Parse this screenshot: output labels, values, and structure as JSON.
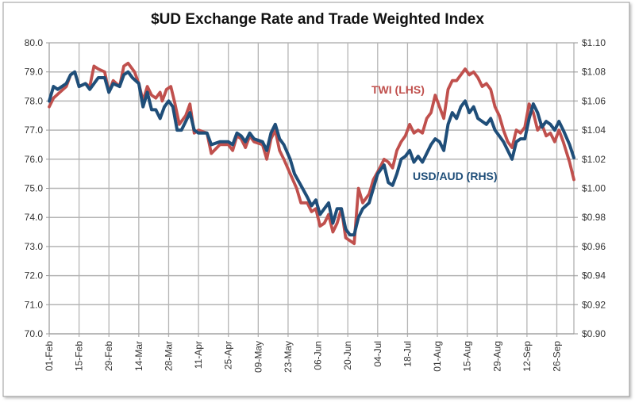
{
  "chart_data": {
    "type": "line",
    "title": "$UD Exchange Rate and Trade Weighted Index",
    "x_unit": "days since 01-Feb",
    "x_tick_labels": [
      "01-Feb",
      "15-Feb",
      "29-Feb",
      "14-Mar",
      "28-Mar",
      "11-Apr",
      "25-Apr",
      "09-May",
      "23-May",
      "06-Jun",
      "20-Jun",
      "04-Jul",
      "18-Jul",
      "01-Aug",
      "15-Aug",
      "29-Aug",
      "12-Sep",
      "26-Sep"
    ],
    "x_tick_days": [
      0,
      14,
      28,
      42,
      56,
      70,
      84,
      98,
      112,
      126,
      140,
      154,
      168,
      182,
      196,
      210,
      224,
      238
    ],
    "xlim": [
      0,
      246
    ],
    "y_left": {
      "ylim": [
        70,
        80
      ],
      "ticks": [
        "70.0",
        "71.0",
        "72.0",
        "73.0",
        "74.0",
        "75.0",
        "76.0",
        "77.0",
        "78.0",
        "79.0",
        "80.0"
      ]
    },
    "y_right": {
      "ylim": [
        0.9,
        1.1
      ],
      "ticks": [
        "$0.90",
        "$0.92",
        "$0.94",
        "$0.96",
        "$0.98",
        "$1.00",
        "$1.02",
        "$1.04",
        "$1.06",
        "$1.08",
        "$1.10"
      ]
    },
    "grid": true,
    "series": [
      {
        "name": "TWI (LHS)",
        "axis": "left",
        "color": "#c0504d",
        "x": [
          0,
          2,
          5,
          8,
          10,
          12,
          14,
          17,
          19,
          21,
          23,
          26,
          28,
          30,
          33,
          35,
          37,
          40,
          42,
          44,
          46,
          48,
          50,
          52,
          53,
          55,
          57,
          59,
          61,
          64,
          66,
          68,
          70,
          74,
          76,
          80,
          84,
          86,
          88,
          90,
          92,
          94,
          96,
          100,
          102,
          104,
          106,
          108,
          110,
          113,
          116,
          118,
          121,
          123,
          125,
          127,
          129,
          131,
          133,
          135,
          137,
          139,
          141,
          143,
          145,
          147,
          150,
          152,
          155,
          157,
          159,
          161,
          163,
          165,
          167,
          169,
          171,
          173,
          175,
          177,
          179,
          181,
          183,
          185,
          187,
          189,
          191,
          193,
          195,
          197,
          199,
          201,
          203,
          205,
          207,
          209,
          211,
          213,
          215,
          217,
          219,
          221,
          223,
          225,
          227,
          229,
          231,
          233,
          235,
          237,
          239,
          241,
          244,
          246
        ],
        "values": [
          77.8,
          78.1,
          78.3,
          78.5,
          78.9,
          79.0,
          78.5,
          78.6,
          78.5,
          79.2,
          79.1,
          79.0,
          78.3,
          78.7,
          78.5,
          79.2,
          79.3,
          79.0,
          78.6,
          78.0,
          78.5,
          78.2,
          78.1,
          78.3,
          78.0,
          78.4,
          78.5,
          77.9,
          77.2,
          77.5,
          77.9,
          76.9,
          77.0,
          76.9,
          76.2,
          76.5,
          76.5,
          76.3,
          76.8,
          76.7,
          76.4,
          76.8,
          76.6,
          76.5,
          76.0,
          76.7,
          77.0,
          76.3,
          76.0,
          75.5,
          75.0,
          74.5,
          74.5,
          74.2,
          74.3,
          73.7,
          73.8,
          74.1,
          73.5,
          73.8,
          74.3,
          73.3,
          73.2,
          73.1,
          75.0,
          74.5,
          74.8,
          75.3,
          75.7,
          76.0,
          75.9,
          75.7,
          76.3,
          76.6,
          76.8,
          77.2,
          76.9,
          77.0,
          76.9,
          77.4,
          77.6,
          78.2,
          77.8,
          77.4,
          78.4,
          78.7,
          78.7,
          78.9,
          79.1,
          78.9,
          79.0,
          78.8,
          78.5,
          78.6,
          78.4,
          77.8,
          77.5,
          77.0,
          76.6,
          76.4,
          77.0,
          76.9,
          77.1,
          77.9,
          77.6,
          77.0,
          77.2,
          76.8,
          76.9,
          76.6,
          77.0,
          76.6,
          75.9,
          75.3
        ]
      },
      {
        "name": "USD/AUD (RHS)",
        "axis": "right",
        "color": "#1f4e79",
        "x": [
          0,
          2,
          4,
          8,
          10,
          12,
          14,
          17,
          19,
          21,
          23,
          26,
          28,
          30,
          33,
          35,
          37,
          39,
          42,
          44,
          46,
          48,
          50,
          52,
          54,
          56,
          58,
          60,
          62,
          64,
          66,
          68,
          70,
          74,
          76,
          80,
          84,
          86,
          88,
          90,
          92,
          94,
          96,
          100,
          102,
          104,
          106,
          108,
          110,
          113,
          115,
          118,
          121,
          123,
          125,
          127,
          129,
          131,
          133,
          135,
          137,
          139,
          141,
          143,
          145,
          147,
          150,
          152,
          154,
          157,
          159,
          161,
          163,
          165,
          167,
          169,
          171,
          173,
          175,
          177,
          179,
          181,
          183,
          185,
          187,
          189,
          191,
          193,
          195,
          197,
          199,
          201,
          203,
          205,
          207,
          209,
          211,
          213,
          215,
          217,
          219,
          221,
          223,
          225,
          227,
          229,
          231,
          233,
          235,
          237,
          239,
          241,
          244,
          246
        ],
        "values": [
          1.06,
          1.07,
          1.068,
          1.072,
          1.078,
          1.08,
          1.07,
          1.072,
          1.068,
          1.072,
          1.076,
          1.076,
          1.066,
          1.072,
          1.07,
          1.078,
          1.08,
          1.076,
          1.072,
          1.056,
          1.066,
          1.054,
          1.054,
          1.048,
          1.056,
          1.06,
          1.056,
          1.04,
          1.04,
          1.046,
          1.052,
          1.04,
          1.038,
          1.038,
          1.03,
          1.032,
          1.032,
          1.03,
          1.038,
          1.036,
          1.032,
          1.038,
          1.034,
          1.032,
          1.026,
          1.038,
          1.044,
          1.034,
          1.03,
          1.02,
          1.01,
          1.002,
          0.994,
          0.988,
          0.992,
          0.982,
          0.986,
          0.99,
          0.976,
          0.986,
          0.986,
          0.972,
          0.968,
          0.968,
          0.98,
          0.986,
          0.99,
          1.0,
          1.01,
          1.016,
          1.004,
          1.002,
          1.01,
          1.02,
          1.022,
          1.026,
          1.018,
          1.022,
          1.018,
          1.024,
          1.03,
          1.034,
          1.032,
          1.026,
          1.044,
          1.052,
          1.048,
          1.056,
          1.06,
          1.052,
          1.056,
          1.048,
          1.046,
          1.044,
          1.048,
          1.04,
          1.036,
          1.032,
          1.026,
          1.02,
          1.032,
          1.034,
          1.034,
          1.048,
          1.058,
          1.052,
          1.042,
          1.046,
          1.044,
          1.04,
          1.046,
          1.04,
          1.03,
          1.021
        ]
      }
    ],
    "annotations": [
      "TWI (LHS)",
      "USD/AUD (RHS)"
    ],
    "legend": "none (inline annotations)"
  }
}
